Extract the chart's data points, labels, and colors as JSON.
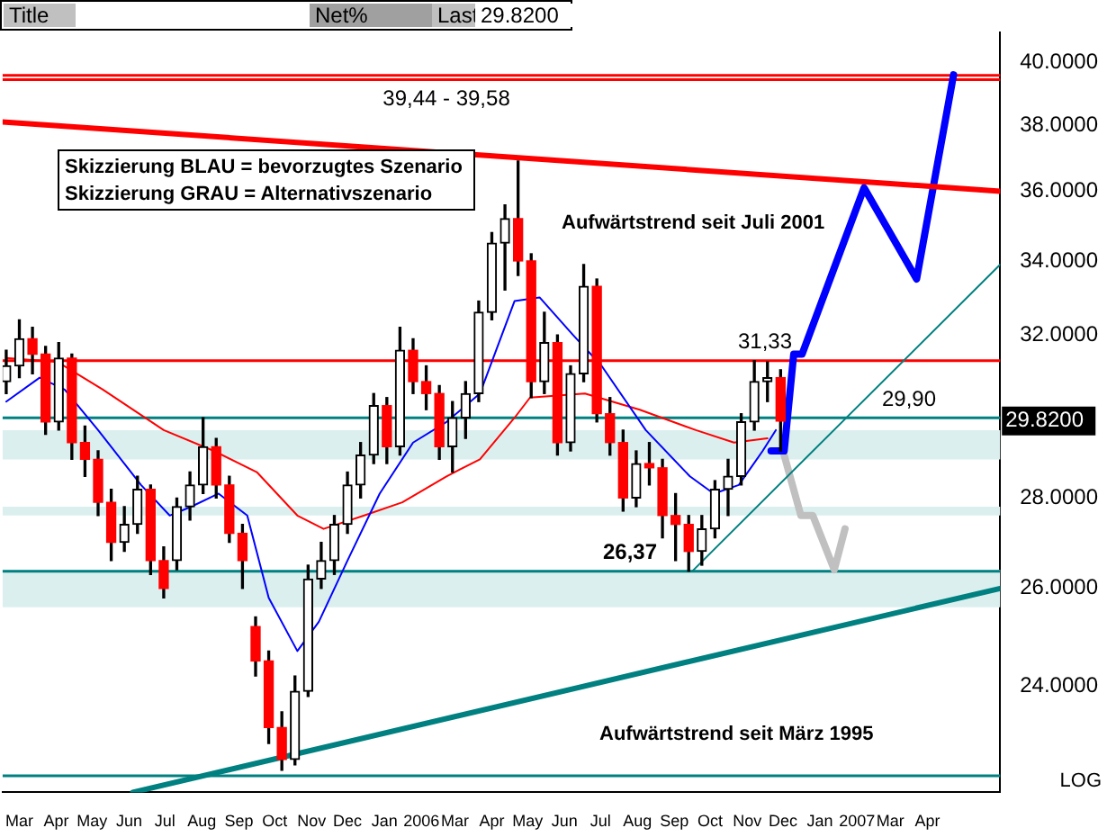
{
  "chart_data": {
    "type": "candlestick",
    "x": [
      "2005-02-18",
      "2005-03-01",
      "2005-03-12",
      "2005-03-23",
      "2005-04-03",
      "2005-04-14",
      "2005-04-25",
      "2005-05-06",
      "2005-05-17",
      "2005-05-28",
      "2005-06-08",
      "2005-06-19",
      "2005-06-30",
      "2005-07-11",
      "2005-07-22",
      "2005-08-02",
      "2005-08-13",
      "2005-08-24",
      "2005-09-04",
      "2005-09-15",
      "2005-09-26",
      "2005-10-07",
      "2005-10-18",
      "2005-10-29",
      "2005-11-09",
      "2005-11-20",
      "2005-12-01",
      "2005-12-12",
      "2005-12-23",
      "2006-01-03",
      "2006-01-14",
      "2006-01-25",
      "2006-02-05",
      "2006-02-16",
      "2006-02-27",
      "2006-03-10",
      "2006-03-21",
      "2006-04-01",
      "2006-04-12",
      "2006-04-23",
      "2006-05-04",
      "2006-05-15",
      "2006-05-26",
      "2006-06-06",
      "2006-06-17",
      "2006-06-28",
      "2006-07-09",
      "2006-07-20",
      "2006-07-31",
      "2006-08-11",
      "2006-08-22",
      "2006-09-02",
      "2006-09-13",
      "2006-09-24",
      "2006-10-05",
      "2006-10-16",
      "2006-10-27",
      "2006-11-07",
      "2006-11-18",
      "2006-11-29"
    ],
    "ohlc": [
      [
        30.8,
        31.6,
        30.5,
        31.2
      ],
      [
        31.2,
        32.4,
        30.9,
        31.9
      ],
      [
        31.9,
        32.2,
        31.0,
        31.5
      ],
      [
        31.5,
        31.7,
        29.5,
        29.8
      ],
      [
        29.8,
        31.8,
        29.6,
        31.4
      ],
      [
        31.4,
        31.5,
        28.9,
        29.3
      ],
      [
        29.3,
        29.7,
        28.5,
        28.9
      ],
      [
        28.9,
        29.1,
        27.6,
        27.9
      ],
      [
        27.9,
        28.2,
        26.6,
        27.0
      ],
      [
        27.0,
        27.8,
        26.8,
        27.4
      ],
      [
        27.4,
        28.5,
        27.2,
        28.2
      ],
      [
        28.2,
        28.3,
        26.3,
        26.6
      ],
      [
        26.6,
        26.9,
        25.8,
        26.0
      ],
      [
        26.6,
        28.0,
        26.4,
        27.8
      ],
      [
        27.8,
        28.6,
        27.5,
        28.3
      ],
      [
        28.3,
        29.9,
        28.1,
        29.2
      ],
      [
        29.2,
        29.4,
        28.0,
        28.3
      ],
      [
        28.3,
        28.5,
        27.0,
        27.2
      ],
      [
        27.2,
        27.4,
        26.0,
        26.6
      ],
      [
        25.2,
        25.4,
        24.2,
        24.5
      ],
      [
        24.5,
        24.7,
        22.9,
        23.2
      ],
      [
        23.2,
        23.5,
        22.4,
        22.6
      ],
      [
        22.6,
        24.2,
        22.5,
        23.9
      ],
      [
        23.9,
        26.5,
        23.8,
        26.2
      ],
      [
        26.2,
        27.0,
        26.0,
        26.6
      ],
      [
        26.6,
        27.6,
        26.3,
        27.4
      ],
      [
        27.4,
        28.6,
        27.2,
        28.3
      ],
      [
        28.3,
        29.3,
        28.0,
        29.0
      ],
      [
        29.0,
        30.5,
        28.8,
        30.2
      ],
      [
        30.2,
        30.4,
        28.8,
        29.2
      ],
      [
        29.2,
        32.2,
        29.0,
        31.6
      ],
      [
        31.6,
        31.9,
        30.5,
        30.8
      ],
      [
        30.8,
        31.2,
        30.1,
        30.5
      ],
      [
        30.5,
        30.7,
        28.9,
        29.2
      ],
      [
        29.2,
        30.3,
        28.6,
        29.9
      ],
      [
        29.9,
        30.8,
        29.4,
        30.5
      ],
      [
        30.5,
        32.9,
        30.3,
        32.6
      ],
      [
        32.6,
        34.8,
        32.4,
        34.5
      ],
      [
        34.5,
        35.6,
        33.2,
        35.2
      ],
      [
        35.2,
        36.9,
        33.6,
        34.0
      ],
      [
        34.0,
        34.2,
        30.4,
        30.8
      ],
      [
        30.8,
        32.6,
        30.5,
        31.8
      ],
      [
        31.8,
        32.0,
        29.0,
        29.3
      ],
      [
        29.3,
        31.2,
        29.1,
        31.0
      ],
      [
        31.0,
        33.9,
        30.8,
        33.3
      ],
      [
        33.3,
        33.5,
        29.8,
        30.0
      ],
      [
        30.0,
        30.4,
        29.0,
        29.3
      ],
      [
        29.3,
        29.6,
        27.7,
        28.0
      ],
      [
        28.0,
        29.1,
        27.8,
        28.8
      ],
      [
        28.8,
        29.3,
        28.3,
        28.7
      ],
      [
        28.7,
        28.9,
        27.1,
        27.6
      ],
      [
        27.6,
        28.1,
        26.6,
        27.4
      ],
      [
        27.4,
        27.6,
        26.37,
        26.8
      ],
      [
        26.8,
        27.6,
        26.5,
        27.3
      ],
      [
        27.3,
        28.4,
        27.1,
        28.2
      ],
      [
        28.2,
        28.9,
        27.6,
        28.5
      ],
      [
        28.5,
        30.0,
        28.3,
        29.8
      ],
      [
        29.8,
        31.33,
        29.6,
        30.8
      ],
      [
        30.8,
        31.3,
        30.3,
        30.9
      ],
      [
        30.9,
        31.1,
        29.1,
        29.82
      ]
    ],
    "series": [
      {
        "type": "line",
        "color": "#0000ff",
        "x": [
          "2005-02-18",
          "2005-03-18",
          "2005-04-08",
          "2005-05-06",
          "2005-06-11",
          "2005-07-05",
          "2005-07-23",
          "2005-08-15",
          "2005-09-08",
          "2005-09-26",
          "2005-10-20",
          "2005-11-07",
          "2005-12-01",
          "2005-12-28",
          "2006-01-25",
          "2006-02-22",
          "2006-03-22",
          "2006-04-20",
          "2006-05-11",
          "2006-06-08",
          "2006-07-02",
          "2006-08-08",
          "2006-09-14",
          "2006-10-04",
          "2006-10-25",
          "2006-11-14",
          "2006-11-25"
        ],
        "values": [
          30.3,
          30.9,
          30.6,
          29.6,
          28.3,
          27.6,
          27.8,
          28.1,
          27.6,
          25.8,
          24.7,
          25.3,
          26.6,
          28.1,
          29.3,
          29.8,
          30.5,
          32.9,
          33.0,
          32.0,
          31.2,
          29.6,
          28.5,
          28.1,
          28.3,
          29.1,
          29.6
        ]
      },
      {
        "type": "line",
        "color": "#ff0000",
        "x": [
          "2005-02-18",
          "2005-04-02",
          "2005-05-10",
          "2005-06-30",
          "2005-08-11",
          "2005-09-16",
          "2005-10-20",
          "2005-11-11",
          "2005-12-15",
          "2006-01-16",
          "2006-02-22",
          "2006-03-22",
          "2006-04-20",
          "2006-05-03",
          "2006-06-18",
          "2006-08-03",
          "2006-09-19",
          "2006-10-21",
          "2006-11-18"
        ],
        "values": [
          31.4,
          31.3,
          30.6,
          29.6,
          29.1,
          28.6,
          27.6,
          27.3,
          27.6,
          27.9,
          28.5,
          28.9,
          29.9,
          30.4,
          30.5,
          30.1,
          29.6,
          29.3,
          29.4
        ]
      },
      {
        "type": "line",
        "color": "#ff0000",
        "x": [
          "2005-02-15",
          "2007-06-01"
        ],
        "values": [
          38.1,
          36.0
        ]
      },
      {
        "type": "line",
        "color": "#008080",
        "x": [
          "2005-06-04",
          "2007-06-01"
        ],
        "values": [
          22.0,
          26.0
        ]
      },
      {
        "type": "line",
        "color": "#008080",
        "x": [
          "2006-09-16",
          "2007-06-01"
        ],
        "values": [
          26.37,
          33.9
        ]
      },
      {
        "type": "line",
        "color": "#0000ff",
        "x": [
          "2006-11-21",
          "2006-12-02",
          "2006-12-10",
          "2006-12-17",
          "2007-02-07",
          "2007-03-23",
          "2007-04-23"
        ],
        "values": [
          29.1,
          29.1,
          31.5,
          31.5,
          36.1,
          33.5,
          39.6
        ]
      },
      {
        "type": "line",
        "color": "#c0c0c0",
        "x": [
          "2006-12-02",
          "2006-12-16",
          "2006-12-26",
          "2007-01-13",
          "2007-01-22"
        ],
        "values": [
          29.0,
          27.6,
          27.6,
          26.4,
          27.3
        ]
      }
    ],
    "xlim": [
      "2005-02-15",
      "2007-06-01"
    ],
    "xticks": [
      {
        "value": "2005-03-01",
        "label": "Mar"
      },
      {
        "value": "2005-04-01",
        "label": "Apr"
      },
      {
        "value": "2005-05-01",
        "label": "May"
      },
      {
        "value": "2005-06-01",
        "label": "Jun"
      },
      {
        "value": "2005-07-01",
        "label": "Jul"
      },
      {
        "value": "2005-08-01",
        "label": "Aug"
      },
      {
        "value": "2005-09-01",
        "label": "Sep"
      },
      {
        "value": "2005-10-01",
        "label": "Oct"
      },
      {
        "value": "2005-11-01",
        "label": "Nov"
      },
      {
        "value": "2005-12-01",
        "label": "Dec"
      },
      {
        "value": "2006-01-01",
        "label": "Jan"
      },
      {
        "value": "2006-02-01",
        "label": "2006"
      },
      {
        "value": "2006-03-01",
        "label": "Mar"
      },
      {
        "value": "2006-04-01",
        "label": "Apr"
      },
      {
        "value": "2006-05-01",
        "label": "May"
      },
      {
        "value": "2006-06-01",
        "label": "Jun"
      },
      {
        "value": "2006-07-01",
        "label": "Jul"
      },
      {
        "value": "2006-08-01",
        "label": "Aug"
      },
      {
        "value": "2006-09-01",
        "label": "Sep"
      },
      {
        "value": "2006-10-01",
        "label": "Oct"
      },
      {
        "value": "2006-11-01",
        "label": "Nov"
      },
      {
        "value": "2006-12-01",
        "label": "Dec"
      },
      {
        "value": "2007-01-01",
        "label": "Jan"
      },
      {
        "value": "2007-02-01",
        "label": "2007"
      },
      {
        "value": "2007-03-01",
        "label": "Mar"
      },
      {
        "value": "2007-04-01",
        "label": "Apr"
      }
    ],
    "ylim": [
      22,
      41
    ],
    "yticks": [
      {
        "value": 24,
        "label": "24.0000"
      },
      {
        "value": 26,
        "label": "26.0000"
      },
      {
        "value": 28,
        "label": "28.0000"
      },
      {
        "value": 32,
        "label": "32.0000"
      },
      {
        "value": 34,
        "label": "34.0000"
      },
      {
        "value": 36,
        "label": "36.0000"
      },
      {
        "value": 38,
        "label": "38.0000"
      },
      {
        "value": 40,
        "label": "40.0000"
      }
    ],
    "log": "y",
    "legend": false,
    "marker": "none",
    "ref_lines": [
      {
        "axis": "y",
        "value": 39.58,
        "color": "#ff0000"
      },
      {
        "axis": "y",
        "value": 39.44,
        "color": "#ff0000",
        "label": "39,44 - 39,58"
      },
      {
        "axis": "y",
        "value": 31.33,
        "color": "#ff0000",
        "label": "31,33"
      },
      {
        "axis": "y",
        "value": 29.9,
        "color": "#008080",
        "label": "29,90"
      },
      {
        "axis": "y",
        "value": 26.37,
        "color": "#008080",
        "label": "26,37"
      },
      {
        "axis": "y",
        "value": 22.3,
        "color": "#008080"
      }
    ],
    "bands": [
      {
        "axis": "y",
        "from": 28.9,
        "to": 29.6,
        "color": "#dcefef"
      },
      {
        "axis": "y",
        "from": 27.6,
        "to": 27.8,
        "color": "#dcefef"
      },
      {
        "axis": "y",
        "from": 25.6,
        "to": 26.4,
        "color": "#dcefef"
      }
    ],
    "annotations": [
      "Title",
      "Net%",
      "Last",
      "29.8200",
      "Skizzierung BLAU = bevorzugtes Szenario",
      "Skizzierung GRAU = Alternativszenario",
      "Aufwärtstrend seit Juli 2001",
      "Aufwärtstrend seit März 1995",
      "LOG",
      "29.8200"
    ]
  }
}
